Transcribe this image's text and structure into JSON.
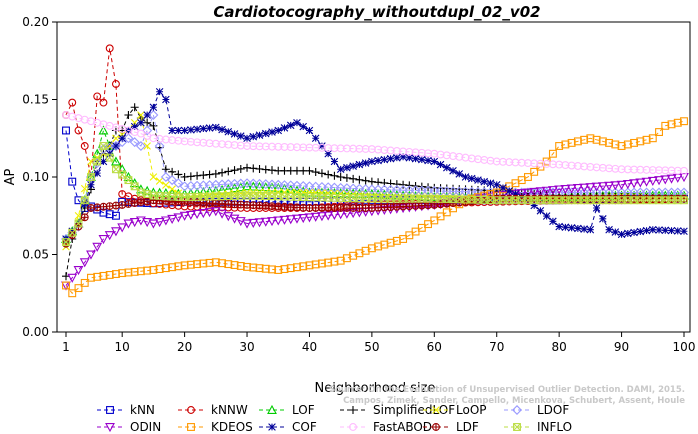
{
  "chart_data": {
    "type": "line",
    "title": "Cardiotocography_withoutdupl_02_v02",
    "xlabel": "Neighborhood size",
    "ylabel": "AP",
    "xlim": [
      1,
      100
    ],
    "ylim": [
      0.0,
      0.2
    ],
    "x_ticks": [
      1,
      10,
      20,
      30,
      40,
      50,
      60,
      70,
      80,
      90,
      100
    ],
    "y_ticks": [
      "0.00",
      "0.05",
      "0.10",
      "0.15",
      "0.20"
    ],
    "grid": false,
    "legend_position": "bottom",
    "watermark": [
      "Source: On the Evaluation of Unsupervised Outlier Detection. DAMI, 2015.",
      "Campos, Zimek, Sander, Campello, Micenkova, Schubert, Assent, Houle"
    ],
    "series": [
      {
        "name": "kNN",
        "color": "#0000cc",
        "marker": "square",
        "points": [
          [
            1,
            0.13
          ],
          [
            2,
            0.097
          ],
          [
            3,
            0.085
          ],
          [
            4,
            0.08
          ],
          [
            5,
            0.081
          ],
          [
            6,
            0.079
          ],
          [
            7,
            0.077
          ],
          [
            8,
            0.076
          ],
          [
            9,
            0.075
          ],
          [
            10,
            0.084
          ],
          [
            15,
            0.083
          ],
          [
            20,
            0.084
          ],
          [
            30,
            0.084
          ],
          [
            40,
            0.084
          ],
          [
            50,
            0.085
          ],
          [
            60,
            0.085
          ],
          [
            70,
            0.085
          ],
          [
            80,
            0.085
          ],
          [
            90,
            0.086
          ],
          [
            100,
            0.086
          ]
        ]
      },
      {
        "name": "kNNW",
        "color": "#cc0000",
        "marker": "circle",
        "points": [
          [
            1,
            0.14
          ],
          [
            2,
            0.148
          ],
          [
            3,
            0.13
          ],
          [
            4,
            0.12
          ],
          [
            5,
            0.1
          ],
          [
            6,
            0.152
          ],
          [
            7,
            0.148
          ],
          [
            8,
            0.183
          ],
          [
            9,
            0.16
          ],
          [
            10,
            0.089
          ],
          [
            12,
            0.086
          ],
          [
            15,
            0.083
          ],
          [
            20,
            0.081
          ],
          [
            30,
            0.08
          ],
          [
            40,
            0.08
          ],
          [
            50,
            0.082
          ],
          [
            60,
            0.083
          ],
          [
            70,
            0.084
          ],
          [
            80,
            0.085
          ],
          [
            90,
            0.085
          ],
          [
            100,
            0.086
          ]
        ]
      },
      {
        "name": "LOF",
        "color": "#00cc00",
        "marker": "triangle-up",
        "points": [
          [
            1,
            0.06
          ],
          [
            3,
            0.07
          ],
          [
            5,
            0.1
          ],
          [
            7,
            0.13
          ],
          [
            9,
            0.11
          ],
          [
            11,
            0.1
          ],
          [
            13,
            0.092
          ],
          [
            15,
            0.09
          ],
          [
            20,
            0.089
          ],
          [
            25,
            0.091
          ],
          [
            30,
            0.094
          ],
          [
            35,
            0.093
          ],
          [
            40,
            0.09
          ],
          [
            50,
            0.089
          ],
          [
            60,
            0.087
          ],
          [
            70,
            0.086
          ],
          [
            80,
            0.087
          ],
          [
            90,
            0.088
          ],
          [
            100,
            0.088
          ]
        ]
      },
      {
        "name": "SimplifiedLOF",
        "color": "#000000",
        "marker": "plus",
        "points": [
          [
            1,
            0.036
          ],
          [
            2,
            0.06
          ],
          [
            3,
            0.07
          ],
          [
            4,
            0.08
          ],
          [
            5,
            0.092
          ],
          [
            6,
            0.11
          ],
          [
            7,
            0.115
          ],
          [
            8,
            0.12
          ],
          [
            9,
            0.13
          ],
          [
            10,
            0.13
          ],
          [
            11,
            0.14
          ],
          [
            12,
            0.145
          ],
          [
            13,
            0.138
          ],
          [
            14,
            0.135
          ],
          [
            15,
            0.133
          ],
          [
            17,
            0.105
          ],
          [
            20,
            0.1
          ],
          [
            25,
            0.102
          ],
          [
            30,
            0.106
          ],
          [
            35,
            0.104
          ],
          [
            40,
            0.104
          ],
          [
            45,
            0.1
          ],
          [
            50,
            0.097
          ],
          [
            60,
            0.093
          ],
          [
            70,
            0.091
          ],
          [
            80,
            0.088
          ],
          [
            90,
            0.087
          ],
          [
            100,
            0.086
          ]
        ]
      },
      {
        "name": "LoOP",
        "color": "#eeee00",
        "marker": "x",
        "points": [
          [
            1,
            0.055
          ],
          [
            3,
            0.075
          ],
          [
            5,
            0.11
          ],
          [
            7,
            0.115
          ],
          [
            9,
            0.125
          ],
          [
            11,
            0.13
          ],
          [
            13,
            0.14
          ],
          [
            15,
            0.1
          ],
          [
            20,
            0.087
          ],
          [
            30,
            0.09
          ],
          [
            40,
            0.09
          ],
          [
            50,
            0.089
          ],
          [
            60,
            0.088
          ],
          [
            70,
            0.087
          ],
          [
            80,
            0.087
          ],
          [
            90,
            0.088
          ],
          [
            100,
            0.087
          ]
        ]
      },
      {
        "name": "LDOF",
        "color": "#9999ff",
        "marker": "diamond",
        "points": [
          [
            1,
            0.06
          ],
          [
            3,
            0.068
          ],
          [
            5,
            0.1
          ],
          [
            7,
            0.118
          ],
          [
            9,
            0.12
          ],
          [
            11,
            0.125
          ],
          [
            13,
            0.12
          ],
          [
            15,
            0.14
          ],
          [
            17,
            0.1
          ],
          [
            20,
            0.094
          ],
          [
            30,
            0.096
          ],
          [
            40,
            0.094
          ],
          [
            50,
            0.092
          ],
          [
            60,
            0.091
          ],
          [
            70,
            0.09
          ],
          [
            80,
            0.09
          ],
          [
            90,
            0.09
          ],
          [
            100,
            0.09
          ]
        ]
      },
      {
        "name": "ODIN",
        "color": "#9900cc",
        "marker": "triangle-down",
        "points": [
          [
            1,
            0.03
          ],
          [
            3,
            0.04
          ],
          [
            5,
            0.05
          ],
          [
            7,
            0.06
          ],
          [
            9,
            0.065
          ],
          [
            11,
            0.07
          ],
          [
            13,
            0.072
          ],
          [
            15,
            0.07
          ],
          [
            20,
            0.075
          ],
          [
            25,
            0.078
          ],
          [
            30,
            0.07
          ],
          [
            35,
            0.072
          ],
          [
            40,
            0.074
          ],
          [
            45,
            0.076
          ],
          [
            50,
            0.078
          ],
          [
            60,
            0.082
          ],
          [
            70,
            0.088
          ],
          [
            80,
            0.092
          ],
          [
            90,
            0.095
          ],
          [
            100,
            0.1
          ]
        ]
      },
      {
        "name": "KDEOS",
        "color": "#ff9900",
        "marker": "square",
        "points": [
          [
            1,
            0.03
          ],
          [
            2,
            0.025
          ],
          [
            5,
            0.035
          ],
          [
            10,
            0.038
          ],
          [
            15,
            0.04
          ],
          [
            20,
            0.043
          ],
          [
            25,
            0.045
          ],
          [
            30,
            0.042
          ],
          [
            35,
            0.04
          ],
          [
            40,
            0.043
          ],
          [
            45,
            0.046
          ],
          [
            50,
            0.054
          ],
          [
            55,
            0.06
          ],
          [
            60,
            0.072
          ],
          [
            65,
            0.085
          ],
          [
            70,
            0.09
          ],
          [
            75,
            0.1
          ],
          [
            78,
            0.11
          ],
          [
            80,
            0.12
          ],
          [
            85,
            0.125
          ],
          [
            90,
            0.12
          ],
          [
            95,
            0.125
          ],
          [
            97,
            0.133
          ],
          [
            100,
            0.136
          ]
        ]
      },
      {
        "name": "COF",
        "color": "#000099",
        "marker": "asterisk",
        "points": [
          [
            1,
            0.06
          ],
          [
            3,
            0.07
          ],
          [
            5,
            0.095
          ],
          [
            7,
            0.11
          ],
          [
            9,
            0.12
          ],
          [
            11,
            0.13
          ],
          [
            13,
            0.135
          ],
          [
            15,
            0.145
          ],
          [
            16,
            0.155
          ],
          [
            17,
            0.15
          ],
          [
            18,
            0.13
          ],
          [
            20,
            0.13
          ],
          [
            25,
            0.132
          ],
          [
            30,
            0.125
          ],
          [
            35,
            0.13
          ],
          [
            38,
            0.135
          ],
          [
            40,
            0.13
          ],
          [
            42,
            0.12
          ],
          [
            45,
            0.105
          ],
          [
            50,
            0.11
          ],
          [
            55,
            0.113
          ],
          [
            60,
            0.11
          ],
          [
            65,
            0.1
          ],
          [
            70,
            0.095
          ],
          [
            75,
            0.085
          ],
          [
            80,
            0.068
          ],
          [
            85,
            0.066
          ],
          [
            86,
            0.08
          ],
          [
            88,
            0.066
          ],
          [
            90,
            0.063
          ],
          [
            95,
            0.066
          ],
          [
            100,
            0.065
          ]
        ]
      },
      {
        "name": "FastABOD",
        "color": "#ffbbff",
        "marker": "circle",
        "points": [
          [
            1,
            0.14
          ],
          [
            3,
            0.138
          ],
          [
            5,
            0.136
          ],
          [
            7,
            0.134
          ],
          [
            9,
            0.132
          ],
          [
            11,
            0.13
          ],
          [
            13,
            0.128
          ],
          [
            15,
            0.125
          ],
          [
            20,
            0.123
          ],
          [
            30,
            0.12
          ],
          [
            40,
            0.119
          ],
          [
            50,
            0.118
          ],
          [
            60,
            0.115
          ],
          [
            70,
            0.11
          ],
          [
            80,
            0.108
          ],
          [
            90,
            0.105
          ],
          [
            100,
            0.104
          ]
        ]
      },
      {
        "name": "LDF",
        "color": "#990000",
        "marker": "circle-plus",
        "points": [
          [
            1,
            0.057
          ],
          [
            3,
            0.068
          ],
          [
            5,
            0.08
          ],
          [
            10,
            0.082
          ],
          [
            15,
            0.085
          ],
          [
            20,
            0.084
          ],
          [
            30,
            0.082
          ],
          [
            40,
            0.08
          ],
          [
            50,
            0.08
          ],
          [
            60,
            0.082
          ],
          [
            70,
            0.086
          ],
          [
            80,
            0.086
          ],
          [
            90,
            0.086
          ],
          [
            100,
            0.086
          ]
        ]
      },
      {
        "name": "INFLO",
        "color": "#bbdd44",
        "marker": "hourglass",
        "points": [
          [
            1,
            0.058
          ],
          [
            3,
            0.07
          ],
          [
            5,
            0.1
          ],
          [
            7,
            0.12
          ],
          [
            9,
            0.105
          ],
          [
            11,
            0.098
          ],
          [
            13,
            0.09
          ],
          [
            15,
            0.088
          ],
          [
            20,
            0.087
          ],
          [
            30,
            0.088
          ],
          [
            40,
            0.087
          ],
          [
            50,
            0.086
          ],
          [
            60,
            0.086
          ],
          [
            70,
            0.085
          ],
          [
            80,
            0.085
          ],
          [
            90,
            0.085
          ],
          [
            100,
            0.085
          ]
        ]
      }
    ]
  }
}
